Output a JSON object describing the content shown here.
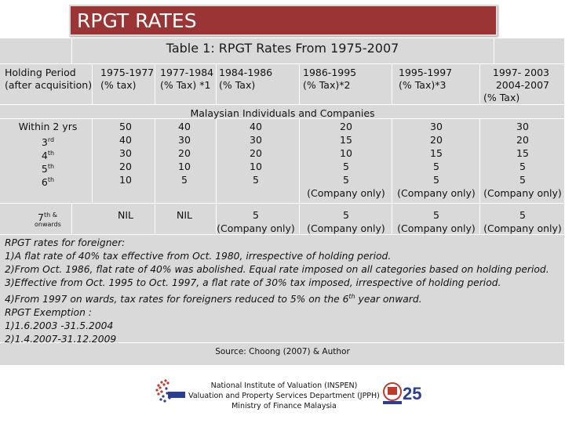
{
  "slide_title": "RPGT RATES",
  "table_caption": "Table 1: RPGT Rates From 1975-2007",
  "headers": [
    {
      "line1": "Holding Period",
      "line2": "(after acquisition)",
      "line3": ""
    },
    {
      "line1": "1975-1977",
      "line2": "(% tax)",
      "line3": ""
    },
    {
      "line1": "1977-1984",
      "line2": "(% Tax) *1",
      "line3": ""
    },
    {
      "line1": "1984-1986",
      "line2": "(% Tax)",
      "line3": ""
    },
    {
      "line1": "1986-1995",
      "line2": "(% Tax)*2",
      "line3": ""
    },
    {
      "line1": "1995-1997",
      "line2": "(% Tax)*3",
      "line3": ""
    },
    {
      "line1": "1997- 2003",
      "line2": "2004-2007",
      "line3": "(% Tax)"
    }
  ],
  "group_label": "Malaysian Individuals and Companies",
  "periods": {
    "p1": {
      "text": "Within 2 yrs",
      "sup": ""
    },
    "p2": {
      "text": "3",
      "sup": "rd"
    },
    "p3": {
      "text": "4",
      "sup": "th"
    },
    "p4": {
      "text": "5",
      "sup": "th"
    },
    "p5": {
      "text": "6",
      "sup": "th"
    },
    "p6": {
      "text": "7",
      "sup": "th &",
      "sub": "onwards"
    }
  },
  "columns": {
    "c1975": [
      "50",
      "40",
      "30",
      "20",
      "10",
      "NIL"
    ],
    "c1977": [
      "40",
      "30",
      "20",
      "10",
      "5",
      "NIL"
    ],
    "c1984": [
      "40",
      "30",
      "20",
      "10",
      "5",
      "5"
    ],
    "c1986": [
      "20",
      "15",
      "10",
      "5",
      "5",
      "5"
    ],
    "c1995": [
      "30",
      "20",
      "15",
      "5",
      "5",
      "5"
    ],
    "c1997": [
      "30",
      "20",
      "15",
      "5",
      "5",
      "5"
    ]
  },
  "company_only": "(Company only)",
  "notes": {
    "l1": "RPGT rates for foreigner:",
    "l2": "1)A flat rate of 40% tax effective from Oct. 1980, irrespective of holding period.",
    "l3": "2)From Oct. 1986, flat rate of 40% was abolished. Equal rate imposed on all categories based on holding period.",
    "l4": "3)Effective from Oct. 1995 to Oct. 1997, a flat rate of 30% tax imposed, irrespective of holding period.",
    "l5a": "4)From 1997 on wards, tax rates for foreigners reduced to 5% on the 6",
    "l5sup": "th",
    "l5b": " year onward.",
    "l6": "RPGT Exemption :",
    "l7": "1)1.6.2003 -31.5.2004",
    "l8": "2)1.4.2007-31.12.2009"
  },
  "source": "Source: Choong (2007) & Author",
  "footer": {
    "l1": "National Institute of Valuation (INSPEN)",
    "l2": "Valuation and Property Services Department (JPPH)",
    "l3": "Ministry of Finance Malaysia"
  },
  "logo_right_text": "25",
  "colors": {
    "title_bg": "#9b3434",
    "table_bg": "#d9d9d9"
  }
}
